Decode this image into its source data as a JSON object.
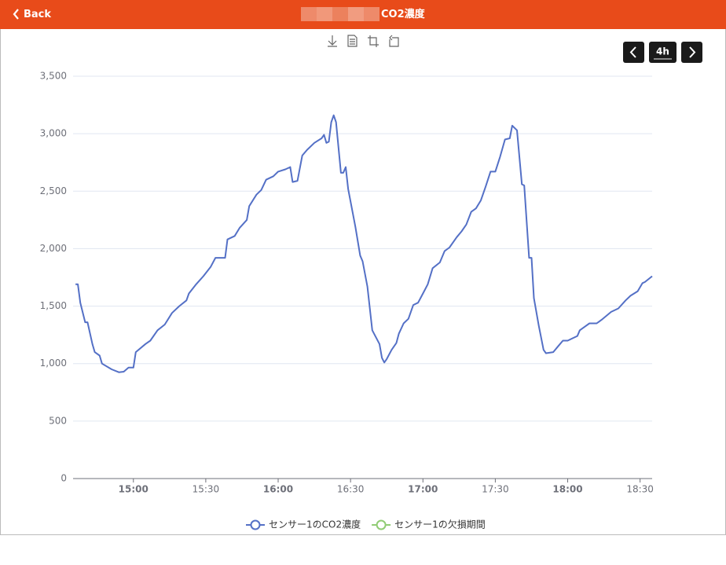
{
  "header": {
    "back": "Back",
    "title": "CO2濃度"
  },
  "range_button": "4h",
  "chart_data": {
    "type": "line",
    "x": [
      "14:36",
      "14:37",
      "14:38",
      "14:40",
      "14:41",
      "14:43",
      "14:44",
      "14:46",
      "14:47",
      "14:51",
      "14:54",
      "14:56",
      "14:58",
      "15:00",
      "15:01",
      "15:05",
      "15:07",
      "15:10",
      "15:13",
      "15:16",
      "15:19",
      "15:22",
      "15:23",
      "15:26",
      "15:29",
      "15:32",
      "15:34",
      "15:38",
      "15:39",
      "15:42",
      "15:44",
      "15:47",
      "15:48",
      "15:51",
      "15:53",
      "15:55",
      "15:58",
      "16:00",
      "16:03",
      "16:05",
      "16:06",
      "16:08",
      "16:10",
      "16:12",
      "16:15",
      "16:18",
      "16:19",
      "16:20",
      "16:21",
      "16:22",
      "16:23",
      "16:24",
      "16:26",
      "16:27",
      "16:28",
      "16:29",
      "16:32",
      "16:34",
      "16:35",
      "16:37",
      "16:39",
      "16:42",
      "16:43",
      "16:44",
      "16:45",
      "16:47",
      "16:49",
      "16:50",
      "16:52",
      "16:54",
      "16:56",
      "16:58",
      "17:00",
      "17:02",
      "17:04",
      "17:07",
      "17:09",
      "17:11",
      "17:14",
      "17:16",
      "17:18",
      "17:20",
      "17:22",
      "17:24",
      "17:26",
      "17:28",
      "17:30",
      "17:32",
      "17:34",
      "17:36",
      "17:37",
      "17:39",
      "17:41",
      "17:42",
      "17:44",
      "17:45",
      "17:46",
      "17:48",
      "17:50",
      "17:51",
      "17:54",
      "17:56",
      "17:58",
      "18:00",
      "18:02",
      "18:04",
      "18:05",
      "18:07",
      "18:09",
      "18:12",
      "18:14",
      "18:18",
      "18:21",
      "18:24",
      "18:26",
      "18:29",
      "18:31",
      "18:32",
      "18:35"
    ],
    "series": [
      {
        "name": "センサー1のCO2濃度",
        "color": "#5470c6",
        "values": [
          1690,
          1690,
          1530,
          1360,
          1360,
          1170,
          1100,
          1070,
          1000,
          950,
          925,
          930,
          965,
          965,
          1100,
          1170,
          1200,
          1290,
          1340,
          1440,
          1500,
          1550,
          1610,
          1690,
          1760,
          1840,
          1920,
          1920,
          2080,
          2110,
          2180,
          2250,
          2370,
          2470,
          2510,
          2600,
          2630,
          2670,
          2690,
          2710,
          2580,
          2590,
          2810,
          2860,
          2920,
          2960,
          2990,
          2920,
          2930,
          3100,
          3160,
          3100,
          2660,
          2660,
          2710,
          2520,
          2190,
          1940,
          1890,
          1670,
          1290,
          1170,
          1050,
          1010,
          1040,
          1120,
          1180,
          1260,
          1350,
          1390,
          1510,
          1530,
          1610,
          1690,
          1830,
          1880,
          1980,
          2010,
          2100,
          2150,
          2210,
          2320,
          2350,
          2420,
          2540,
          2670,
          2670,
          2800,
          2950,
          2960,
          3070,
          3030,
          2560,
          2550,
          1920,
          1920,
          1570,
          1330,
          1120,
          1090,
          1100,
          1150,
          1200,
          1200,
          1220,
          1240,
          1290,
          1320,
          1350,
          1350,
          1380,
          1450,
          1480,
          1550,
          1590,
          1630,
          1700,
          1710,
          1760
        ]
      }
    ],
    "legend": [
      {
        "name": "センサー1のCO2濃度",
        "color": "#5470c6"
      },
      {
        "name": "センサー1の欠損期間",
        "color": "#91cc75"
      }
    ],
    "xlim": [
      "14:35",
      "18:35"
    ],
    "xticks": [
      "15:00",
      "15:30",
      "16:00",
      "16:30",
      "17:00",
      "17:30",
      "18:00",
      "18:30"
    ],
    "ylim": [
      0,
      3500
    ],
    "yticks": [
      0,
      500,
      {
        "value": 1000,
        "label": "1,000"
      },
      {
        "value": 1500,
        "label": "1,500"
      },
      {
        "value": 2000,
        "label": "2,000"
      },
      {
        "value": 2500,
        "label": "2,500"
      },
      {
        "value": 3000,
        "label": "3,000"
      },
      {
        "value": 3500,
        "label": "3,500"
      }
    ],
    "grid": true
  }
}
